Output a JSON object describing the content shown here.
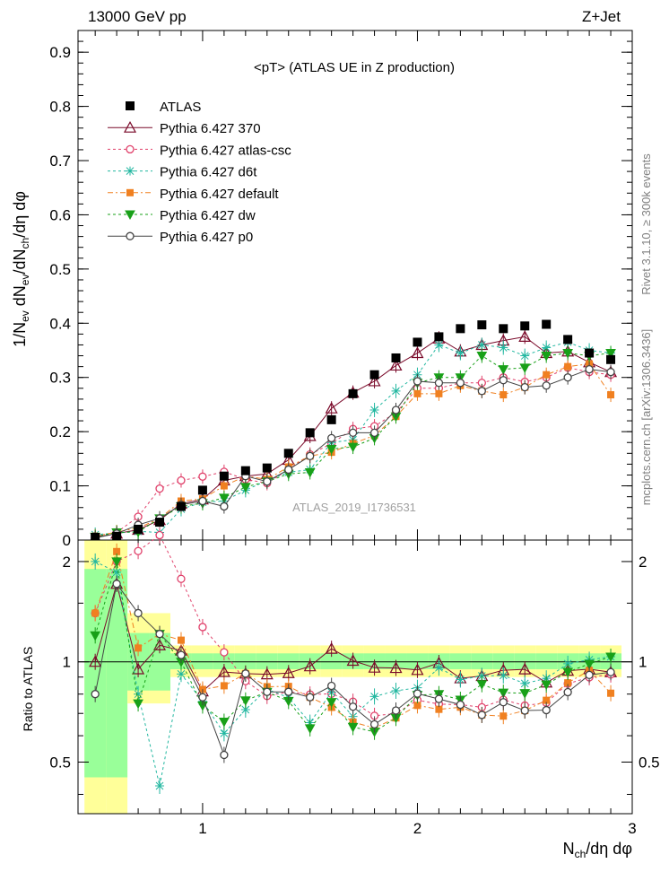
{
  "header": {
    "left": "13000 GeV pp",
    "right": "Z+Jet"
  },
  "side_labels": {
    "rivet": "Rivet 3.1.10, ≥ 300k events",
    "site": "mcplots.cern.ch [arXiv:1306.3436]"
  },
  "chart_data": {
    "type": "scatter",
    "title": "<pT> (ATLAS UE in Z production)",
    "watermark": "ATLAS_2019_I1736531",
    "ylabel": "1/N_ev dN_ev/dN_ch/dη dφ",
    "xlabel": "N_ch/dη dφ",
    "ratio_ylabel": "Ratio to ATLAS",
    "xlim": [
      0.42,
      3.0
    ],
    "ylim": [
      0,
      0.94
    ],
    "ratio_ylim": [
      0.35,
      2.32
    ],
    "xticks": [
      "1",
      "2",
      "3"
    ],
    "yticks": [
      "0",
      "0.1",
      "0.2",
      "0.3",
      "0.4",
      "0.5",
      "0.6",
      "0.7",
      "0.8",
      "0.9"
    ],
    "ratio_yticks": [
      "0.5",
      "1",
      "2"
    ],
    "legend_position": "top-left",
    "x": [
      0.5,
      0.6,
      0.7,
      0.8,
      0.9,
      1.0,
      1.1,
      1.2,
      1.3,
      1.4,
      1.5,
      1.6,
      1.7,
      1.8,
      1.9,
      2.0,
      2.1,
      2.2,
      2.3,
      2.4,
      2.5,
      2.6,
      2.7,
      2.8,
      2.9
    ],
    "data": {
      "name": "ATLAS",
      "values": [
        0.005,
        0.007,
        0.02,
        0.033,
        0.062,
        0.092,
        0.118,
        0.128,
        0.133,
        0.16,
        0.198,
        0.222,
        0.27,
        0.305,
        0.336,
        0.365,
        0.375,
        0.39,
        0.397,
        0.39,
        0.395,
        0.398,
        0.37,
        0.345,
        0.333
      ]
    },
    "series": [
      {
        "name": "Pythia 6.427 370",
        "color": "#7a0a2a",
        "marker": "triangle-open",
        "dash": "",
        "values": [
          0.005,
          0.012,
          0.019,
          0.037,
          0.067,
          0.075,
          0.11,
          0.118,
          0.122,
          0.148,
          0.192,
          0.243,
          0.272,
          0.293,
          0.322,
          0.345,
          0.372,
          0.348,
          0.36,
          0.368,
          0.375,
          0.345,
          0.348,
          0.328,
          0.31
        ]
      },
      {
        "name": "Pythia 6.427 atlas-csc",
        "color": "#e0406a",
        "marker": "circle-open",
        "dash": "3,3",
        "values": [
          0.007,
          0.014,
          0.043,
          0.095,
          0.11,
          0.117,
          0.126,
          0.112,
          0.105,
          0.13,
          0.158,
          0.178,
          0.205,
          0.21,
          0.235,
          0.28,
          0.28,
          0.29,
          0.29,
          0.3,
          0.292,
          0.3,
          0.318,
          0.31,
          0.305
        ]
      },
      {
        "name": "Pythia 6.427 d6t",
        "color": "#22b7a0",
        "marker": "star",
        "dash": "3,3",
        "values": [
          0.01,
          0.013,
          0.016,
          0.014,
          0.057,
          0.07,
          0.072,
          0.092,
          0.11,
          0.125,
          0.13,
          0.18,
          0.185,
          0.24,
          0.275,
          0.305,
          0.36,
          0.345,
          0.36,
          0.355,
          0.34,
          0.355,
          0.365,
          0.35,
          0.345
        ]
      },
      {
        "name": "Pythia 6.427 default",
        "color": "#f08020",
        "marker": "square",
        "dash": "6,3,2,3",
        "values": [
          0.007,
          0.015,
          0.022,
          0.04,
          0.072,
          0.076,
          0.1,
          0.118,
          0.112,
          0.135,
          0.155,
          0.162,
          0.178,
          0.193,
          0.228,
          0.27,
          0.27,
          0.285,
          0.275,
          0.268,
          0.282,
          0.305,
          0.32,
          0.325,
          0.268
        ]
      },
      {
        "name": "Pythia 6.427 dw",
        "color": "#18a018",
        "marker": "triangle-down",
        "dash": "3,3",
        "values": [
          0.006,
          0.014,
          0.015,
          0.04,
          0.062,
          0.068,
          0.078,
          0.098,
          0.108,
          0.122,
          0.125,
          0.168,
          0.172,
          0.188,
          0.228,
          0.29,
          0.3,
          0.3,
          0.34,
          0.315,
          0.318,
          0.34,
          0.345,
          0.34,
          0.345
        ]
      },
      {
        "name": "Pythia 6.427 p0",
        "color": "#444444",
        "marker": "circle-open",
        "dash": "",
        "values": [
          0.004,
          0.012,
          0.028,
          0.04,
          0.065,
          0.072,
          0.062,
          0.118,
          0.108,
          0.13,
          0.155,
          0.188,
          0.198,
          0.198,
          0.24,
          0.293,
          0.29,
          0.29,
          0.275,
          0.295,
          0.282,
          0.285,
          0.3,
          0.315,
          0.31
        ]
      }
    ]
  }
}
